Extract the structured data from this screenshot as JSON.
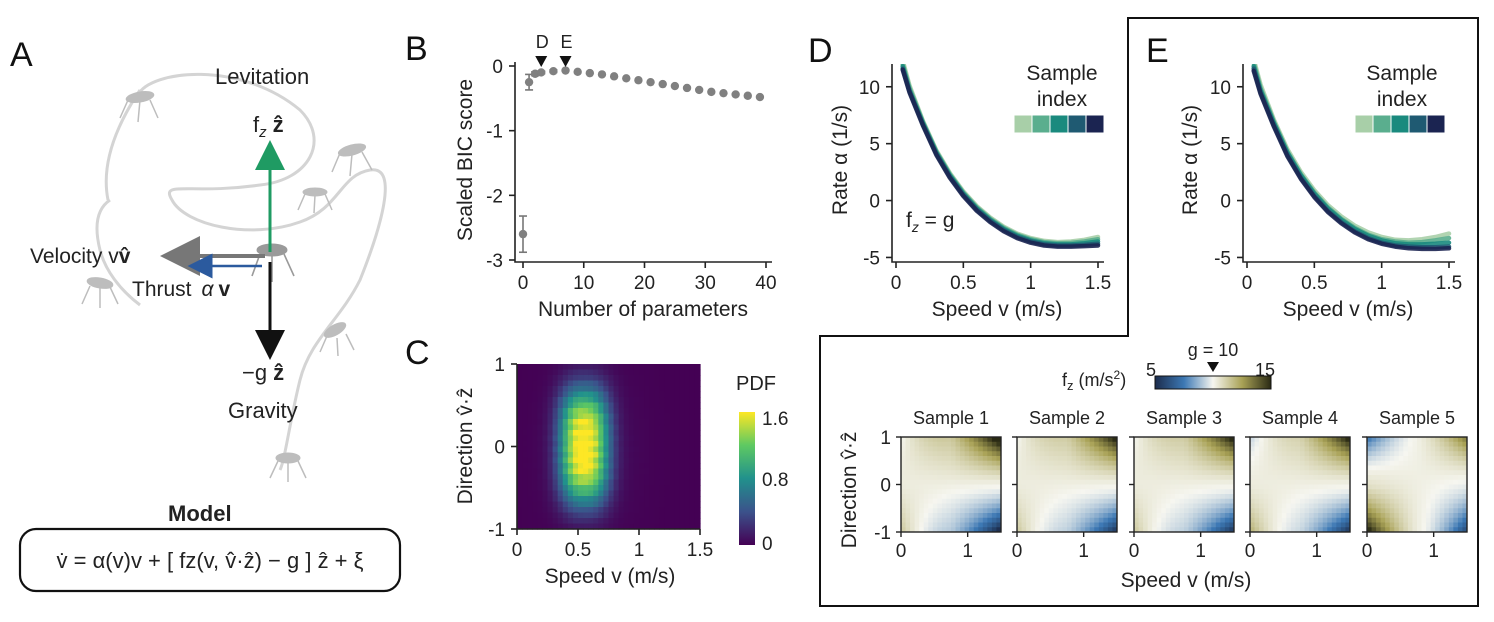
{
  "panel_letters": {
    "a": "A",
    "b": "B",
    "c": "C",
    "d": "D",
    "e": "E"
  },
  "colors": {
    "levitation": "#1f9b63",
    "thrust": "#2b5a9e",
    "velocity": "#777777",
    "gravity": "#111111",
    "sample_1": "#a8cfa8",
    "sample_2": "#5aae8e",
    "sample_3": "#1a8a7e",
    "sample_4": "#1f5a72",
    "sample_5": "#1b2451"
  },
  "panel_a": {
    "levitation_label": "Levitation",
    "levitation_symbol": "f",
    "levitation_sub": "z",
    "levitation_unit": "ẑ",
    "velocity_label": "Velocity v",
    "velocity_unit": "v̂",
    "thrust_label": "Thrust",
    "thrust_alpha": "α",
    "thrust_unit": "v",
    "gravity_symbol": "−g",
    "gravity_unit": "ẑ",
    "gravity_label": "Gravity",
    "model_title": "Model",
    "model_equation": "v̇ = α(v)v + [ fz(v, v̂·ẑ) − g ] ẑ + ξ"
  },
  "chart_data": [
    {
      "id": "B",
      "type": "scatter",
      "title": "",
      "xlabel": "Number of parameters",
      "ylabel": "Scaled BIC score",
      "xlim": [
        -1,
        41
      ],
      "ylim": [
        -3,
        0.1
      ],
      "xticks": [
        "0",
        "10",
        "20",
        "30",
        "40"
      ],
      "yticks": [
        "0",
        "-1",
        "-2",
        "-3"
      ],
      "x": [
        0,
        1,
        2,
        3,
        5,
        7,
        9,
        11,
        13,
        15,
        17,
        19,
        21,
        23,
        25,
        27,
        29,
        31,
        33,
        35,
        37,
        39
      ],
      "values": [
        -2.6,
        -0.25,
        -0.12,
        -0.1,
        -0.08,
        -0.07,
        -0.09,
        -0.11,
        -0.13,
        -0.16,
        -0.19,
        -0.22,
        -0.25,
        -0.28,
        -0.31,
        -0.34,
        -0.37,
        -0.4,
        -0.42,
        -0.44,
        -0.46,
        -0.48
      ],
      "errors": [
        0.28,
        0.12,
        0.03,
        0.02,
        0.02,
        0.01,
        0.01,
        0.01,
        0.01,
        0.01,
        0.01,
        0.01,
        0.01,
        0.01,
        0.01,
        0.01,
        0.01,
        0.01,
        0.01,
        0.01,
        0.01,
        0.01
      ],
      "markers": [
        {
          "label": "D",
          "x": 3
        },
        {
          "label": "E",
          "x": 7
        }
      ]
    },
    {
      "id": "C",
      "type": "heatmap",
      "xlabel": "Speed v (m/s)",
      "ylabel": "Direction v̂·ẑ",
      "xlim": [
        0,
        1.5
      ],
      "ylim": [
        -1,
        1
      ],
      "xticks": [
        "0",
        "0.5",
        "1",
        "1.5"
      ],
      "yticks": [
        "1",
        "0",
        "-1"
      ],
      "colorbar_label": "PDF",
      "colorbar_ticks": [
        "1.6",
        "0.8",
        "0"
      ],
      "clim": [
        0,
        1.6
      ],
      "peak": {
        "speed": 0.55,
        "direction": 0.0,
        "pdf": 1.6
      }
    },
    {
      "id": "D",
      "type": "line",
      "xlabel": "Speed v (m/s)",
      "ylabel": "Rate α (1/s)",
      "xlim": [
        0,
        1.5
      ],
      "ylim": [
        -5,
        12
      ],
      "xticks": [
        "0",
        "0.5",
        "1",
        "1.5"
      ],
      "yticks": [
        "10",
        "5",
        "0",
        "-5"
      ],
      "annotation": "f",
      "annotation_sub": "z",
      "annotation_rest": " = g",
      "legend_title_1": "Sample",
      "legend_title_2": "index",
      "series": [
        {
          "name": "Sample 1",
          "x": [
            0.05,
            0.1,
            0.2,
            0.3,
            0.4,
            0.5,
            0.6,
            0.7,
            0.8,
            0.9,
            1.0,
            1.1,
            1.2,
            1.3,
            1.4,
            1.5
          ],
          "values": [
            12.3,
            10.1,
            7.0,
            4.4,
            2.4,
            0.8,
            -0.5,
            -1.5,
            -2.3,
            -2.9,
            -3.3,
            -3.55,
            -3.65,
            -3.6,
            -3.45,
            -3.2
          ]
        },
        {
          "name": "Sample 2",
          "x": [
            0.05,
            0.1,
            0.2,
            0.3,
            0.4,
            0.5,
            0.6,
            0.7,
            0.8,
            0.9,
            1.0,
            1.1,
            1.2,
            1.3,
            1.4,
            1.5
          ],
          "values": [
            12.0,
            9.9,
            6.9,
            4.3,
            2.3,
            0.7,
            -0.6,
            -1.6,
            -2.4,
            -3.0,
            -3.4,
            -3.65,
            -3.75,
            -3.72,
            -3.6,
            -3.4
          ]
        },
        {
          "name": "Sample 3",
          "x": [
            0.05,
            0.1,
            0.2,
            0.3,
            0.4,
            0.5,
            0.6,
            0.7,
            0.8,
            0.9,
            1.0,
            1.1,
            1.2,
            1.3,
            1.4,
            1.5
          ],
          "values": [
            11.8,
            9.7,
            6.8,
            4.2,
            2.2,
            0.6,
            -0.7,
            -1.7,
            -2.5,
            -3.1,
            -3.5,
            -3.75,
            -3.85,
            -3.85,
            -3.75,
            -3.6
          ]
        },
        {
          "name": "Sample 4",
          "x": [
            0.05,
            0.1,
            0.2,
            0.3,
            0.4,
            0.5,
            0.6,
            0.7,
            0.8,
            0.9,
            1.0,
            1.1,
            1.2,
            1.3,
            1.4,
            1.5
          ],
          "values": [
            11.6,
            9.6,
            6.7,
            4.1,
            2.1,
            0.5,
            -0.8,
            -1.8,
            -2.6,
            -3.2,
            -3.6,
            -3.85,
            -3.95,
            -3.95,
            -3.9,
            -3.8
          ]
        },
        {
          "name": "Sample 5",
          "x": [
            0.05,
            0.1,
            0.2,
            0.3,
            0.4,
            0.5,
            0.6,
            0.7,
            0.8,
            0.9,
            1.0,
            1.1,
            1.2,
            1.3,
            1.4,
            1.5
          ],
          "values": [
            11.5,
            9.5,
            6.6,
            4.0,
            2.0,
            0.4,
            -0.9,
            -1.9,
            -2.7,
            -3.3,
            -3.7,
            -3.95,
            -4.05,
            -4.05,
            -4.0,
            -3.95
          ]
        }
      ]
    },
    {
      "id": "E",
      "type": "line",
      "xlabel": "Speed v (m/s)",
      "ylabel": "Rate α (1/s)",
      "xlim": [
        0,
        1.5
      ],
      "ylim": [
        -5,
        12
      ],
      "xticks": [
        "0",
        "0.5",
        "1",
        "1.5"
      ],
      "yticks": [
        "10",
        "5",
        "0",
        "-5"
      ],
      "legend_title_1": "Sample",
      "legend_title_2": "index",
      "series": [
        {
          "name": "Sample 1",
          "x": [
            0.05,
            0.1,
            0.2,
            0.3,
            0.4,
            0.5,
            0.6,
            0.7,
            0.8,
            0.9,
            1.0,
            1.1,
            1.2,
            1.3,
            1.4,
            1.5
          ],
          "values": [
            12.4,
            10.2,
            7.1,
            4.5,
            2.5,
            0.9,
            -0.4,
            -1.4,
            -2.2,
            -2.8,
            -3.2,
            -3.45,
            -3.5,
            -3.4,
            -3.2,
            -2.9
          ]
        },
        {
          "name": "Sample 2",
          "x": [
            0.05,
            0.1,
            0.2,
            0.3,
            0.4,
            0.5,
            0.6,
            0.7,
            0.8,
            0.9,
            1.0,
            1.1,
            1.2,
            1.3,
            1.4,
            1.5
          ],
          "values": [
            12.1,
            9.9,
            6.9,
            4.3,
            2.3,
            0.7,
            -0.6,
            -1.6,
            -2.4,
            -3.0,
            -3.4,
            -3.6,
            -3.7,
            -3.65,
            -3.5,
            -3.3
          ]
        },
        {
          "name": "Sample 3",
          "x": [
            0.05,
            0.1,
            0.2,
            0.3,
            0.4,
            0.5,
            0.6,
            0.7,
            0.8,
            0.9,
            1.0,
            1.1,
            1.2,
            1.3,
            1.4,
            1.5
          ],
          "values": [
            11.8,
            9.7,
            6.8,
            4.2,
            2.2,
            0.6,
            -0.7,
            -1.7,
            -2.5,
            -3.1,
            -3.5,
            -3.75,
            -3.85,
            -3.85,
            -3.8,
            -3.7
          ]
        },
        {
          "name": "Sample 4",
          "x": [
            0.05,
            0.1,
            0.2,
            0.3,
            0.4,
            0.5,
            0.6,
            0.7,
            0.8,
            0.9,
            1.0,
            1.1,
            1.2,
            1.3,
            1.4,
            1.5
          ],
          "values": [
            11.6,
            9.5,
            6.6,
            4.0,
            2.0,
            0.4,
            -0.9,
            -1.9,
            -2.7,
            -3.3,
            -3.7,
            -3.95,
            -4.05,
            -4.1,
            -4.1,
            -4.05
          ]
        },
        {
          "name": "Sample 5",
          "x": [
            0.05,
            0.1,
            0.2,
            0.3,
            0.4,
            0.5,
            0.6,
            0.7,
            0.8,
            0.9,
            1.0,
            1.1,
            1.2,
            1.3,
            1.4,
            1.5
          ],
          "values": [
            11.4,
            9.4,
            6.5,
            3.9,
            1.9,
            0.3,
            -1.0,
            -2.0,
            -2.8,
            -3.4,
            -3.8,
            -4.05,
            -4.2,
            -4.25,
            -4.25,
            -4.2
          ]
        }
      ]
    },
    {
      "id": "F",
      "type": "heatmap",
      "xlabel": "Speed v (m/s)",
      "ylabel": "Direction v̂·ẑ",
      "xlim": [
        0,
        1.5
      ],
      "ylim": [
        -1,
        1
      ],
      "xticks": [
        "0",
        "1"
      ],
      "yticks": [
        "1",
        "0",
        "-1"
      ],
      "colorbar_label": "f",
      "colorbar_sub": "z",
      "colorbar_unit": " (m/s",
      "colorbar_unit_sup": "2",
      "colorbar_unit_end": ")",
      "colorbar_min": "5",
      "colorbar_max": "15",
      "colorbar_marker": "g = 10",
      "clim": [
        5,
        15
      ],
      "panels": [
        {
          "name": "Sample 1",
          "corners": {
            "top_left": 10.0,
            "top_right": 14.5,
            "bottom_left": 11.0,
            "bottom_right": 6.0
          }
        },
        {
          "name": "Sample 2",
          "corners": {
            "top_left": 10.0,
            "top_right": 14.0,
            "bottom_left": 11.0,
            "bottom_right": 6.5
          }
        },
        {
          "name": "Sample 3",
          "corners": {
            "top_left": 10.0,
            "top_right": 14.0,
            "bottom_left": 11.0,
            "bottom_right": 6.5
          }
        },
        {
          "name": "Sample 4",
          "corners": {
            "top_left": 9.5,
            "top_right": 14.0,
            "bottom_left": 11.5,
            "bottom_right": 6.5
          }
        },
        {
          "name": "Sample 5",
          "corners": {
            "top_left": 8.0,
            "top_right": 12.5,
            "bottom_left": 14.0,
            "bottom_right": 7.0
          }
        }
      ]
    }
  ]
}
